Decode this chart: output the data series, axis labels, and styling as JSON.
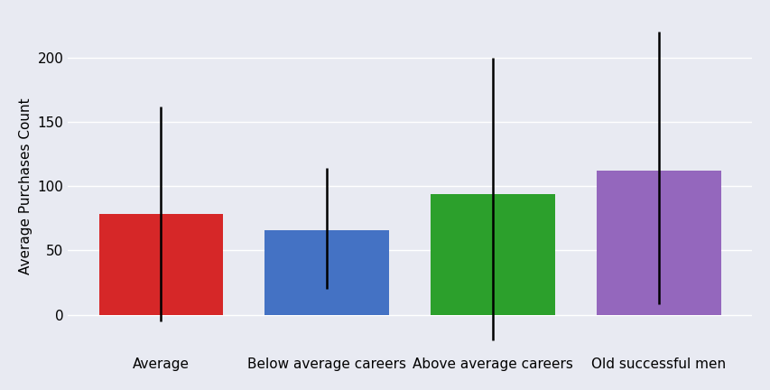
{
  "categories": [
    "Average",
    "Below average careers",
    "Above average careers",
    "Old successful men"
  ],
  "values": [
    78,
    66,
    94,
    112
  ],
  "upper_whisker": [
    162,
    114,
    200,
    220
  ],
  "lower_whisker": [
    -5,
    20,
    -20,
    8
  ],
  "bar_colors": [
    "#d62728",
    "#4472c4",
    "#2ca02c",
    "#9467bd"
  ],
  "ylabel": "Average Purchases Count",
  "ylim": [
    -30,
    230
  ],
  "yticks": [
    0,
    50,
    100,
    150,
    200
  ],
  "background_color": "#e8eaf2",
  "figure_color": "#e8eaf2",
  "bar_width": 0.75,
  "errorbar_lw": 1.8,
  "grid_color": "#ffffff",
  "tick_fontsize": 11,
  "ylabel_fontsize": 11
}
